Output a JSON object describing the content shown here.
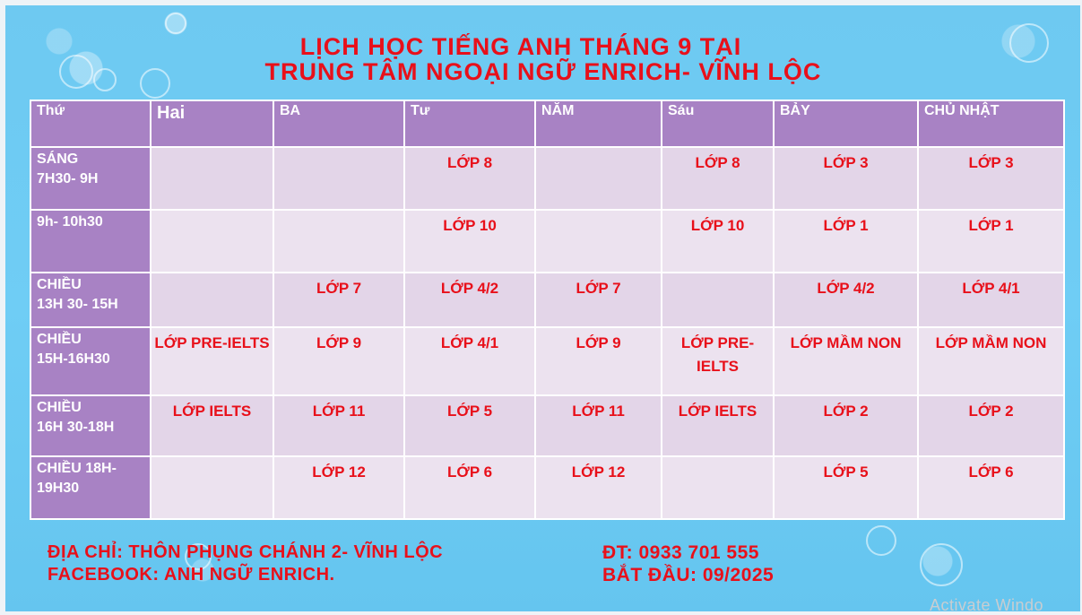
{
  "title": {
    "line1": "LỊCH HỌC TIẾNG ANH THÁNG 9 TẠI",
    "line2": "TRUNG TÂM NGOẠI NGỮ ENRICH- VĨNH LỘC"
  },
  "table": {
    "headers": [
      "Thứ",
      "Hai",
      "BA",
      "Tư",
      "NĂM",
      "Sáu",
      "BẢY",
      "CHỦ NHẬT"
    ],
    "rows": [
      {
        "slot": [
          "SÁNG",
          "7H30- 9H"
        ],
        "cells": [
          "",
          "",
          "LỚP 8",
          "",
          "LỚP 8",
          "LỚP 3",
          "LỚP 3"
        ]
      },
      {
        "slot": [
          "9h- 10h30"
        ],
        "cells": [
          "",
          "",
          "LỚP 10",
          "",
          "LỚP 10",
          "LỚP 1",
          "LỚP 1"
        ]
      },
      {
        "slot": [
          "CHIỀU",
          "13H 30- 15H"
        ],
        "cells": [
          "",
          "LỚP 7",
          "LỚP 4/2",
          "LỚP 7",
          "",
          "LỚP 4/2",
          "LỚP 4/1"
        ]
      },
      {
        "slot": [
          "CHIỀU",
          "15H-16H30"
        ],
        "cells": [
          "LỚP PRE-IELTS",
          "LỚP 9",
          "LỚP 4/1",
          "LỚP 9",
          "LỚP PRE-IELTS",
          "LỚP MẦM NON",
          "LỚP MẦM NON"
        ]
      },
      {
        "slot": [
          "CHIỀU",
          "16H 30-18H"
        ],
        "cells": [
          "LỚP IELTS",
          "LỚP 11",
          "LỚP 5",
          "LỚP 11",
          "LỚP IELTS",
          "LỚP 2",
          "LỚP 2"
        ]
      },
      {
        "slot": [
          "CHIỀU 18H-",
          "19H30"
        ],
        "cells": [
          "",
          "LỚP 12",
          "LỚP 6",
          "LỚP 12",
          "",
          "LỚP 5",
          "LỚP 6"
        ]
      }
    ]
  },
  "footer": {
    "address": "ĐỊA CHỈ: THÔN PHỤNG CHÁNH 2- VĨNH LỘC",
    "facebook": "FACEBOOK: ANH NGỮ ENRICH.",
    "phone": "ĐT: 0933 701 555",
    "start": "BẮT ĐẦU: 09/2025"
  },
  "watermark": "Activate Windo",
  "colors": {
    "background": "#6fcdf5",
    "accent_red": "#e8101a",
    "header_purple": "#a882c4",
    "cell_light": "#e3d5e8"
  }
}
